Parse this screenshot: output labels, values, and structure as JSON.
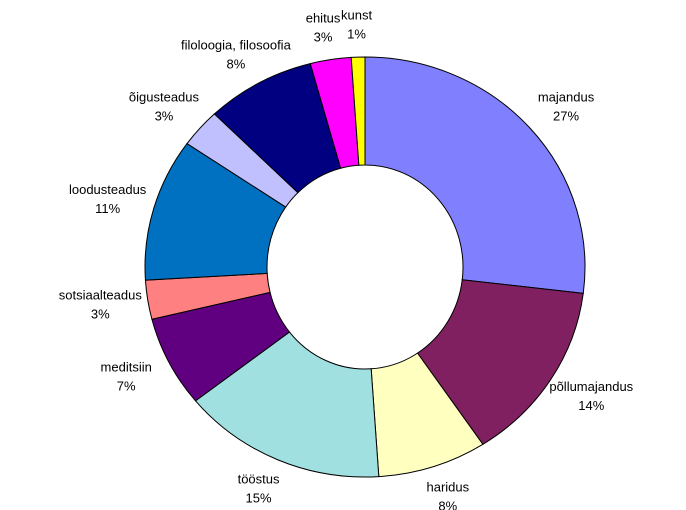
{
  "chart_data": {
    "type": "donut",
    "categories": [
      "majandus",
      "põllumajandus",
      "haridus",
      "tööstus",
      "meditsiin",
      "sotsiaalteadus",
      "loodusteadus",
      "õigusteadus",
      "filoloogia, filosoofia",
      "ehitus",
      "kunst"
    ],
    "values": [
      27,
      14,
      8,
      15,
      7,
      3,
      11,
      3,
      8,
      3,
      1
    ],
    "value_labels": [
      "27%",
      "14%",
      "8%",
      "15%",
      "7%",
      "3%",
      "11%",
      "3%",
      "8%",
      "3%",
      "1%"
    ],
    "colors": [
      "#8080ff",
      "#802060",
      "#ffffc0",
      "#a0e0e0",
      "#600080",
      "#ff8080",
      "#0070c0",
      "#c0c0ff",
      "#000080",
      "#ff00ff",
      "#ffff00"
    ]
  }
}
